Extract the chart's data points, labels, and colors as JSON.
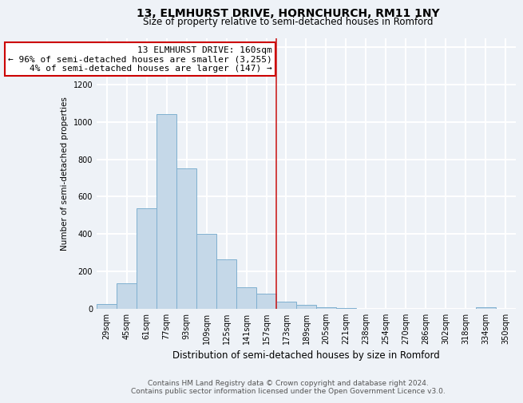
{
  "title": "13, ELMHURST DRIVE, HORNCHURCH, RM11 1NY",
  "subtitle": "Size of property relative to semi-detached houses in Romford",
  "xlabel": "Distribution of semi-detached houses by size in Romford",
  "ylabel": "Number of semi-detached properties",
  "categories": [
    "29sqm",
    "45sqm",
    "61sqm",
    "77sqm",
    "93sqm",
    "109sqm",
    "125sqm",
    "141sqm",
    "157sqm",
    "173sqm",
    "189sqm",
    "205sqm",
    "221sqm",
    "238sqm",
    "254sqm",
    "270sqm",
    "286sqm",
    "302sqm",
    "318sqm",
    "334sqm",
    "350sqm"
  ],
  "values": [
    25,
    135,
    540,
    1040,
    750,
    400,
    265,
    115,
    80,
    40,
    20,
    10,
    5,
    0,
    0,
    0,
    0,
    0,
    0,
    10,
    0
  ],
  "bar_color": "#c5d8e8",
  "bar_edge_color": "#7fb0d0",
  "vline_x_index": 8,
  "vline_color": "#cc2222",
  "annotation_line1": "13 ELMHURST DRIVE: 160sqm",
  "annotation_line2": "← 96% of semi-detached houses are smaller (3,255)",
  "annotation_line3": "4% of semi-detached houses are larger (147) →",
  "annotation_box_color": "#ffffff",
  "annotation_box_edge_color": "#cc0000",
  "ylim": [
    0,
    1450
  ],
  "yticks": [
    0,
    200,
    400,
    600,
    800,
    1000,
    1200,
    1400
  ],
  "footer_line1": "Contains HM Land Registry data © Crown copyright and database right 2024.",
  "footer_line2": "Contains public sector information licensed under the Open Government Licence v3.0.",
  "bg_color": "#eef2f7",
  "grid_color": "#ffffff",
  "title_fontsize": 10,
  "subtitle_fontsize": 8.5,
  "xlabel_fontsize": 8.5,
  "ylabel_fontsize": 7.5,
  "tick_fontsize": 7,
  "footer_fontsize": 6.5,
  "annotation_fontsize": 8
}
